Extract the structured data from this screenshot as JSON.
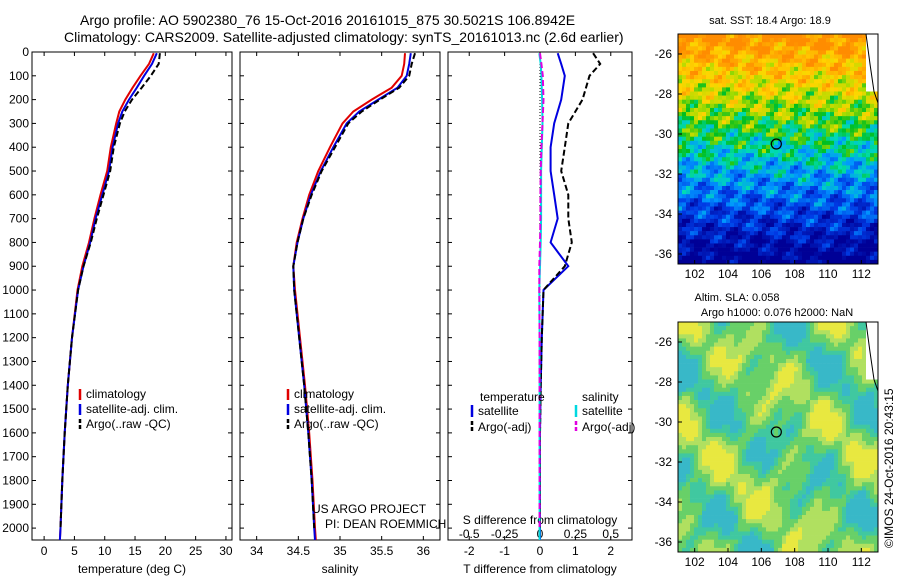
{
  "header": {
    "line1": "Argo profile: AO 5902380_76 15-Oct-2016 20161015_875 30.5021S 106.8942E",
    "line2": "Climatology: CARS2009. Satellite-adjusted climatology: synTS_20161013.nc (2.6d earlier)"
  },
  "chart_data": [
    {
      "type": "line",
      "panel": "temperature",
      "xlabel": "temperature (deg C)",
      "ylabel": "",
      "xlim": [
        -2,
        31
      ],
      "ylim": [
        2050,
        0
      ],
      "x_ticks": [
        "0",
        "5",
        "10",
        "15",
        "20",
        "25",
        "30"
      ],
      "y_ticks": [
        "0",
        "100",
        "200",
        "300",
        "400",
        "500",
        "600",
        "700",
        "800",
        "900",
        "1000",
        "1100",
        "1200",
        "1300",
        "1400",
        "1500",
        "1600",
        "1700",
        "1800",
        "1900",
        "2000"
      ],
      "legend": [
        "climatology",
        "satellite-adj. clim.",
        "Argo(..raw -QC)"
      ],
      "series": [
        {
          "name": "climatology",
          "color": "#e00000",
          "style": "solid",
          "depth": [
            5,
            50,
            100,
            150,
            200,
            250,
            300,
            400,
            500,
            600,
            700,
            800,
            900,
            1000,
            1200,
            1400,
            1600,
            1800,
            2000,
            2050
          ],
          "values": [
            18.1,
            17.3,
            15.9,
            14.6,
            13.4,
            12.4,
            11.9,
            11.0,
            10.4,
            9.3,
            8.3,
            7.4,
            6.3,
            5.5,
            4.6,
            3.9,
            3.4,
            3.0,
            2.7,
            2.6
          ]
        },
        {
          "name": "satellite-adj. clim.",
          "color": "#0000e0",
          "style": "solid",
          "depth": [
            5,
            50,
            100,
            150,
            200,
            250,
            300,
            400,
            500,
            600,
            700,
            800,
            900,
            1000,
            1200,
            1400,
            1600,
            1800,
            2000,
            2050
          ],
          "values": [
            18.6,
            17.8,
            16.5,
            15.3,
            14.0,
            12.9,
            12.2,
            11.3,
            10.7,
            9.6,
            8.5,
            7.6,
            6.5,
            5.6,
            4.6,
            3.9,
            3.4,
            3.0,
            2.7,
            2.6
          ]
        },
        {
          "name": "Argo(..raw -QC)",
          "color": "#000000",
          "style": "dashed",
          "depth": [
            5,
            50,
            100,
            150,
            200,
            250,
            300,
            400,
            500,
            600,
            700,
            800,
            900,
            1000,
            1200,
            1400,
            1600,
            1800,
            2000
          ],
          "values": [
            19.1,
            18.9,
            17.6,
            16.1,
            14.5,
            13.3,
            12.5,
            11.5,
            10.9,
            9.8,
            8.7,
            7.7,
            6.5,
            5.6,
            4.6,
            3.9,
            3.4,
            3.0,
            2.7
          ]
        }
      ]
    },
    {
      "type": "line",
      "panel": "salinity",
      "xlabel": "salinity",
      "xlim": [
        33.8,
        36.2
      ],
      "ylim": [
        2050,
        0
      ],
      "x_ticks": [
        "34",
        "34.5",
        "35",
        "35.5",
        "36"
      ],
      "legend": [
        "climatology",
        "satellite-adj. clim.",
        "Argo(..raw -QC)"
      ],
      "series": [
        {
          "name": "climatology",
          "color": "#e00000",
          "style": "solid",
          "depth": [
            5,
            50,
            100,
            150,
            200,
            250,
            300,
            400,
            500,
            600,
            700,
            800,
            900,
            1000,
            1200,
            1400,
            1600,
            1800,
            2000,
            2050
          ],
          "values": [
            35.78,
            35.77,
            35.74,
            35.62,
            35.38,
            35.16,
            35.03,
            34.88,
            34.74,
            34.63,
            34.55,
            34.48,
            34.44,
            34.46,
            34.52,
            34.58,
            34.63,
            34.67,
            34.7,
            34.71
          ]
        },
        {
          "name": "satellite-adj. clim.",
          "color": "#0000e0",
          "style": "solid",
          "depth": [
            5,
            50,
            100,
            150,
            200,
            250,
            300,
            400,
            500,
            600,
            700,
            800,
            900,
            1000,
            1200,
            1400,
            1600,
            1800,
            2000,
            2050
          ],
          "values": [
            35.85,
            35.83,
            35.8,
            35.69,
            35.46,
            35.23,
            35.08,
            34.92,
            34.77,
            34.65,
            34.56,
            34.49,
            34.44,
            34.45,
            34.51,
            34.57,
            34.62,
            34.66,
            34.69,
            34.7
          ]
        },
        {
          "name": "Argo(..raw -QC)",
          "color": "#000000",
          "style": "dashed",
          "depth": [
            5,
            50,
            100,
            150,
            200,
            250,
            300,
            400,
            500,
            600,
            700,
            800,
            900,
            1000,
            1200,
            1400,
            1600,
            1800,
            2000
          ],
          "values": [
            35.9,
            35.86,
            35.83,
            35.71,
            35.48,
            35.26,
            35.1,
            34.94,
            34.78,
            34.66,
            34.56,
            34.49,
            34.44,
            34.45,
            34.51,
            34.57,
            34.62,
            34.66,
            34.69
          ]
        }
      ]
    },
    {
      "type": "line",
      "panel": "difference",
      "xlabel": "T difference from climatology",
      "xlabel2": "S difference from climatology",
      "xlim": [
        -2.6,
        2.6
      ],
      "ylim": [
        2050,
        0
      ],
      "x_ticks": [
        "-2",
        "-1",
        "0",
        "1",
        "2"
      ],
      "x_ticks_top": [
        "-0.5",
        "-0.25",
        "0",
        "0.25",
        "0.5"
      ],
      "legend_headers": [
        "temperature",
        "salinity"
      ],
      "legend": [
        "satellite",
        "Argo(-adj)",
        "satellite",
        "Argo(-adj)"
      ],
      "series": [
        {
          "name": "temperature satellite",
          "color": "#0000e0",
          "style": "solid",
          "depth": [
            5,
            50,
            100,
            200,
            300,
            400,
            500,
            600,
            700,
            800,
            900,
            1000,
            1200,
            1400,
            1600,
            1800,
            2000,
            2050
          ],
          "values": [
            0.5,
            0.6,
            0.7,
            0.6,
            0.4,
            0.3,
            0.3,
            0.4,
            0.5,
            0.3,
            0.8,
            0.1,
            0.05,
            0.02,
            0.0,
            0.0,
            0.0,
            0.0
          ]
        },
        {
          "name": "temperature Argo(-adj)",
          "color": "#000000",
          "style": "dashed",
          "depth": [
            5,
            50,
            100,
            200,
            300,
            400,
            500,
            600,
            700,
            800,
            900,
            1000,
            1200,
            1400,
            1600,
            1800,
            2000
          ],
          "values": [
            1.5,
            1.7,
            1.4,
            1.2,
            0.8,
            0.7,
            0.6,
            0.8,
            0.8,
            0.9,
            0.7,
            0.1,
            0.05,
            0.02,
            0.0,
            0.0,
            0.0
          ]
        },
        {
          "name": "salinity satellite",
          "color": "#00d8e0",
          "style": "solid",
          "depth": [
            5,
            50,
            100,
            200,
            300,
            400,
            500,
            600,
            700,
            800,
            900,
            1000,
            1200,
            1400,
            1600,
            1800,
            2000,
            2050
          ],
          "values": [
            -0.02,
            0.02,
            0.04,
            0.06,
            0.07,
            0.05,
            0.03,
            0.03,
            0.03,
            0.02,
            0.0,
            -0.02,
            -0.01,
            -0.01,
            -0.01,
            -0.01,
            -0.01,
            -0.01
          ]
        },
        {
          "name": "salinity Argo(-adj)",
          "color": "#e000e0",
          "style": "dashed",
          "depth": [
            5,
            50,
            100,
            200,
            300,
            400,
            500,
            600,
            700,
            800,
            900,
            1000,
            1200,
            1400,
            1600,
            1800,
            2000
          ],
          "values": [
            0.0,
            0.04,
            0.08,
            0.1,
            0.07,
            0.04,
            0.02,
            0.01,
            0.01,
            0.0,
            -0.02,
            -0.02,
            -0.01,
            -0.01,
            -0.01,
            -0.01,
            -0.01
          ]
        }
      ]
    },
    {
      "type": "heatmap",
      "panel": "sst-map",
      "title": "sat. SST: 18.4 Argo: 18.9",
      "xlim": [
        101,
        113
      ],
      "ylim": [
        -36.5,
        -25
      ],
      "x_ticks": [
        "102",
        "104",
        "106",
        "108",
        "110",
        "112"
      ],
      "y_ticks": [
        "-26",
        "-28",
        "-30",
        "-32",
        "-34",
        "-36"
      ],
      "marker": {
        "lon": 106.9,
        "lat": -30.5
      }
    },
    {
      "type": "heatmap",
      "panel": "sla-map",
      "title": "Altim. SLA: 0.058",
      "subtitle": "Argo h1000: 0.076 h2000: NaN",
      "xlim": [
        101,
        113
      ],
      "ylim": [
        -36.5,
        -25
      ],
      "x_ticks": [
        "102",
        "104",
        "106",
        "108",
        "110",
        "112"
      ],
      "y_ticks": [
        "-26",
        "-28",
        "-30",
        "-32",
        "-34",
        "-36"
      ],
      "marker": {
        "lon": 106.9,
        "lat": -30.5
      }
    }
  ],
  "annotations": {
    "project": "US ARGO PROJECT",
    "pi": "PI: DEAN ROEMMICH",
    "credit": "©IMOS 24-Oct-2016 20:43:15"
  }
}
